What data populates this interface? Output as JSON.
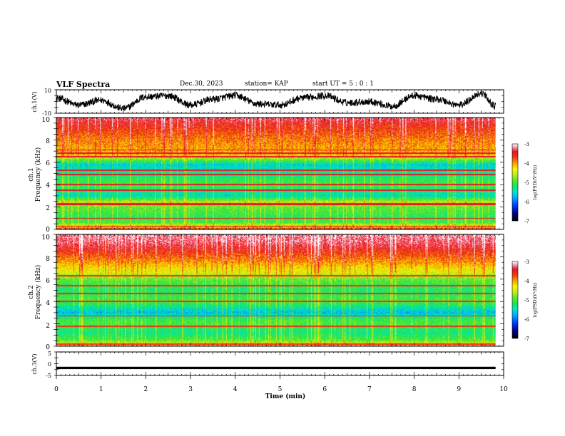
{
  "header": {
    "title": "VLF Spectra",
    "date": "Dec.30, 2023",
    "station": "station= KAP",
    "start": "start  UT =   5 : 0  : 1"
  },
  "chart_data": [
    {
      "type": "line",
      "name": "ch1-waveform",
      "ylabel": "ch.1(V)",
      "ylim": [
        -10,
        10
      ],
      "yticks": [
        "10",
        "-10"
      ],
      "xlim": [
        0,
        10
      ],
      "data_end_min": 9.82,
      "waveform_keypoints_x": [
        0,
        0.5,
        1.0,
        1.5,
        2.0,
        2.5,
        3.0,
        3.5,
        4.0,
        4.5,
        5.0,
        5.5,
        6.0,
        6.5,
        7.0,
        7.5,
        8.0,
        8.5,
        9.0,
        9.5,
        9.82
      ],
      "waveform_keypoints_y": [
        3,
        -3,
        1,
        -6,
        4,
        5,
        -3,
        2,
        5,
        -2,
        -3,
        3,
        5,
        -1,
        0,
        -4,
        5,
        2,
        -3,
        7,
        -4
      ],
      "waveform_noise_amplitude": 3
    },
    {
      "type": "heatmap",
      "name": "ch1-spectrogram",
      "ylabel_top": "ch.1",
      "ylabel": "Frequency  (kHz)",
      "ylim": [
        0,
        10
      ],
      "yticks": [
        "0",
        "2",
        "4",
        "6",
        "8",
        "10"
      ],
      "xlim": [
        0,
        10
      ],
      "data_end_min": 9.82,
      "colorbar": {
        "label": "log(PSD)(V²/Hz)",
        "min": -7,
        "max": -3,
        "ticks": [
          "-3",
          "-4",
          "-5",
          "-6",
          "-7"
        ]
      },
      "band_levels_khz": [
        0,
        0.6,
        1.2,
        2.0,
        2.4,
        3.0,
        3.6,
        4.0,
        5.2,
        5.8,
        6.4,
        6.7,
        8.0,
        9.5,
        10.0
      ],
      "band_levels_psd": [
        -3.6,
        -5.0,
        -5.1,
        -4.9,
        -4.5,
        -5.5,
        -5.2,
        -5.0,
        -5.4,
        -5.6,
        -4.6,
        -4.1,
        -3.9,
        -3.5,
        -3.3
      ],
      "narrow_lines_khz": [
        0.3,
        1.0,
        2.2,
        2.3,
        3.5,
        4.0,
        4.9,
        5.3,
        6.5,
        6.8,
        7.1
      ],
      "narrow_lines_psd": -3.4
    },
    {
      "type": "heatmap",
      "name": "ch2-spectrogram",
      "ylabel_top": "ch.2",
      "ylabel": "Frequency  (kHz)",
      "ylim": [
        0,
        10
      ],
      "yticks": [
        "0",
        "2",
        "4",
        "6",
        "8",
        "10"
      ],
      "xlim": [
        0,
        10
      ],
      "data_end_min": 9.82,
      "colorbar": {
        "label": "log(PSD)(V²/Hz)",
        "min": -7,
        "max": -3,
        "ticks": [
          "-3",
          "-4",
          "-5",
          "-6",
          "-7"
        ]
      },
      "band_levels_khz": [
        0,
        0.6,
        1.2,
        2.0,
        2.4,
        3.0,
        3.6,
        4.0,
        5.0,
        5.8,
        6.5,
        7.5,
        8.5,
        9.3,
        10.0
      ],
      "band_levels_psd": [
        -4.2,
        -5.0,
        -5.3,
        -5.0,
        -5.1,
        -5.7,
        -5.3,
        -5.0,
        -5.2,
        -5.0,
        -4.5,
        -4.0,
        -3.6,
        -3.3,
        -3.2
      ],
      "narrow_lines_khz": [
        0.2,
        1.8,
        2.7,
        4.0,
        4.7,
        5.4,
        6.3
      ],
      "narrow_lines_psd": -3.6
    },
    {
      "type": "line",
      "name": "ch3-trace",
      "ylabel": "ch.3(V)",
      "ylim": [
        -5,
        5
      ],
      "yticks": [
        "5",
        "0",
        "-5"
      ],
      "xlim": [
        0,
        10
      ],
      "data_end_min": 9.82,
      "trace_value": -1.8,
      "trace_thickness_v": 1.0,
      "xlabel": "Time  (min)",
      "xticks": [
        "0",
        "1",
        "2",
        "3",
        "4",
        "5",
        "6",
        "7",
        "8",
        "9",
        "10"
      ]
    }
  ]
}
